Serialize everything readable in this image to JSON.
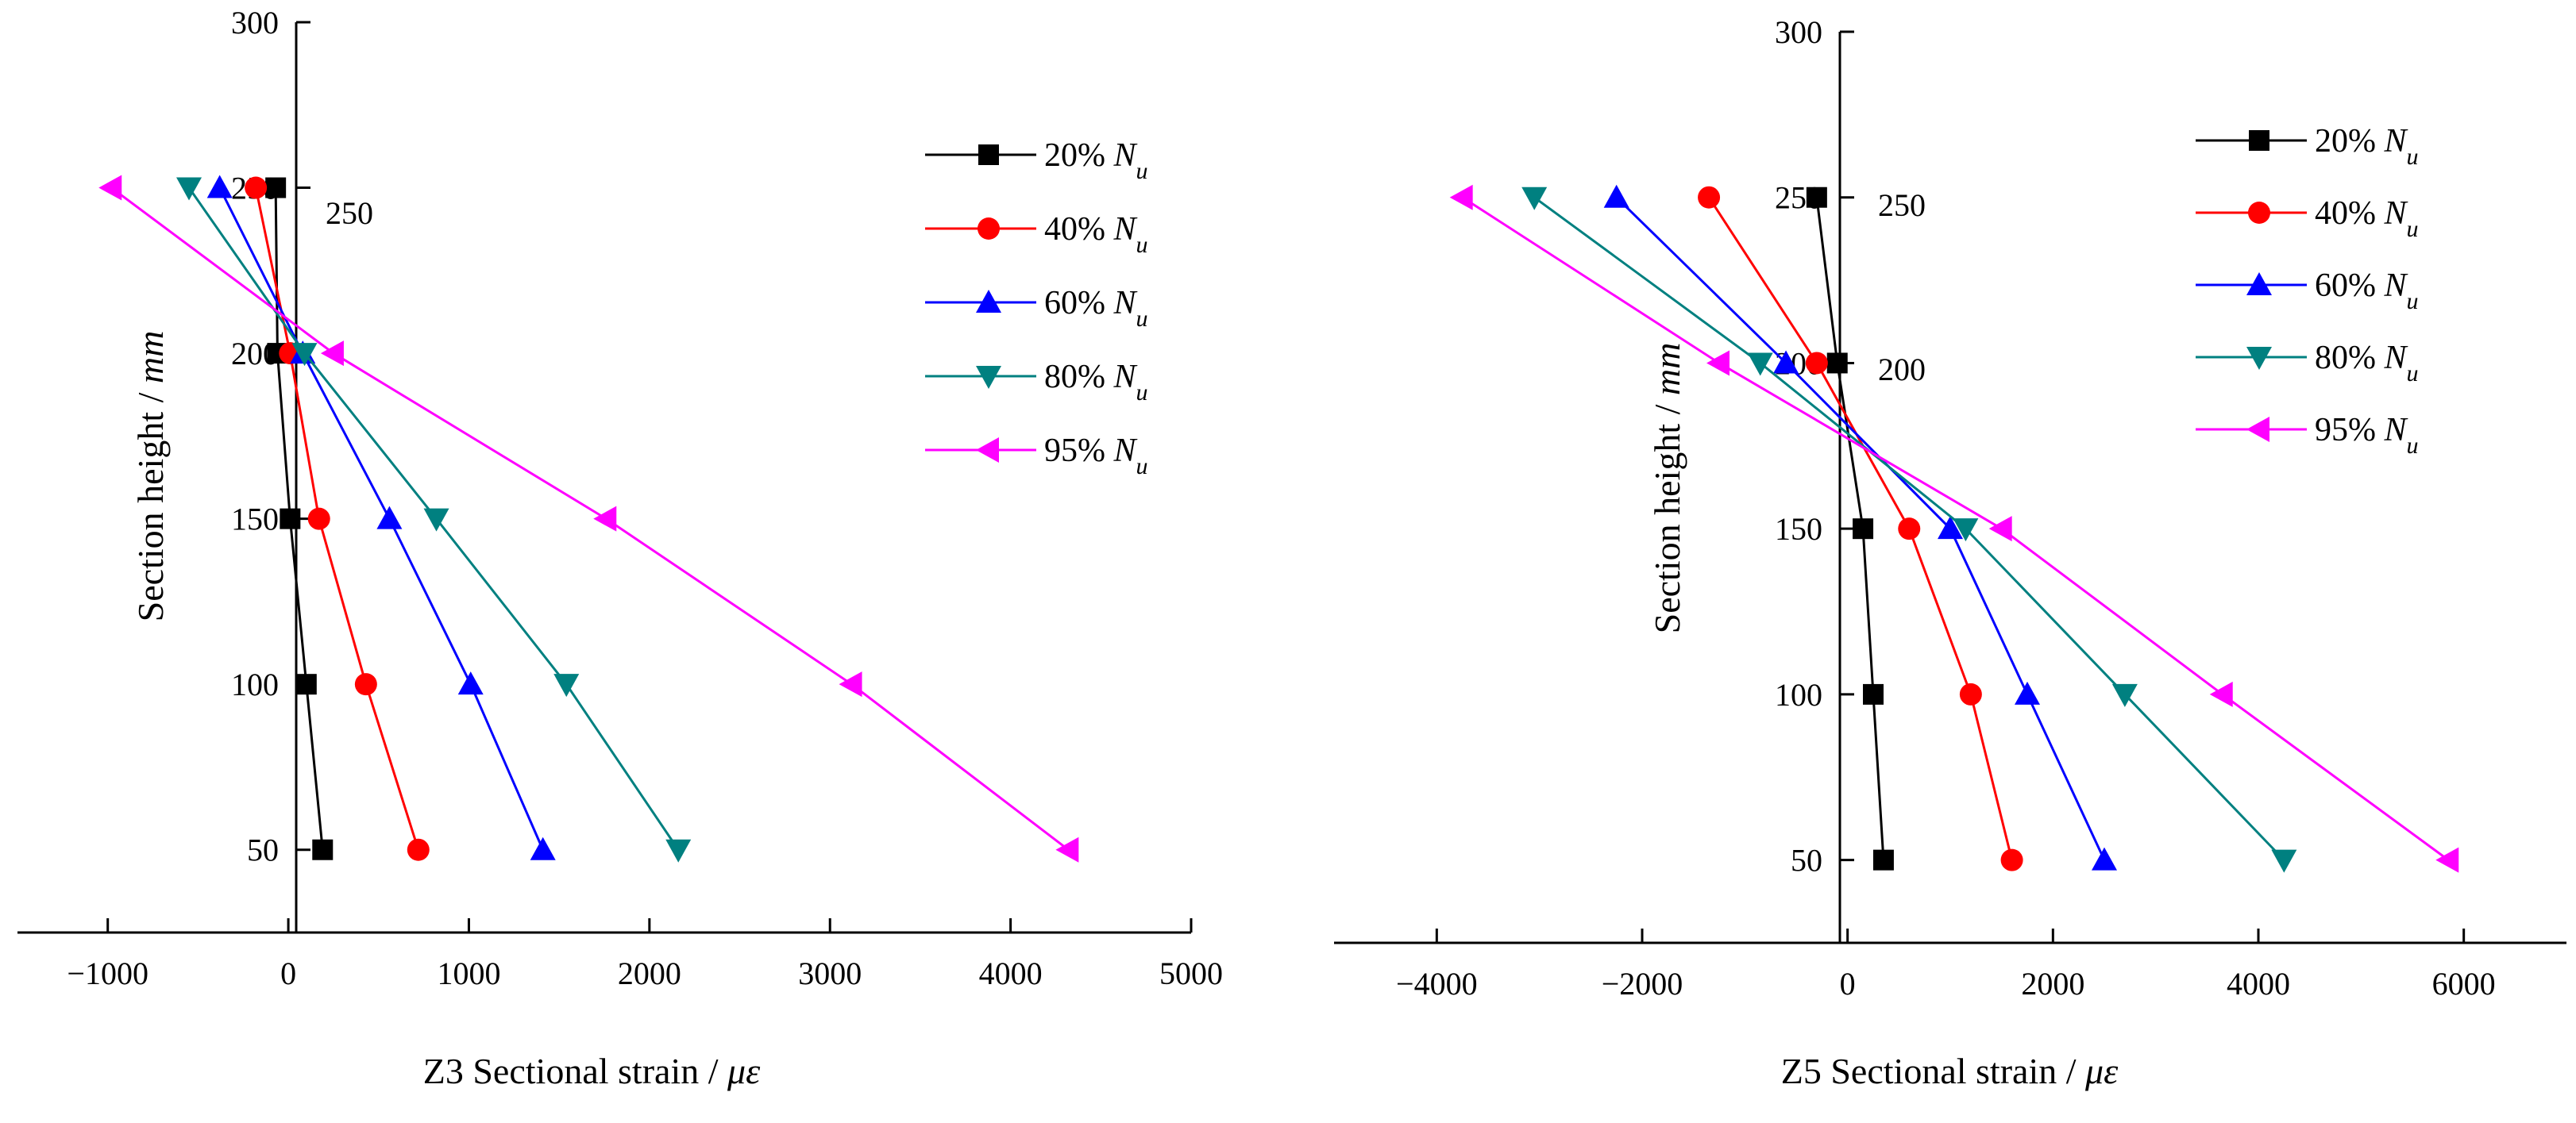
{
  "chart_data": [
    {
      "type": "line",
      "title": "",
      "xlabel": "Z3 Sectional strain / με",
      "ylabel": "Section height / mm",
      "xlim": [
        -1500,
        5000
      ],
      "ylim": [
        25,
        300
      ],
      "xticks": [
        -1000,
        0,
        1000,
        2000,
        3000,
        4000,
        5000
      ],
      "xtick_labels": [
        "−1000",
        "0",
        "1000",
        "2000",
        "3000",
        "4000",
        "5000"
      ],
      "yticks": [
        50,
        100,
        150,
        200,
        250,
        300
      ],
      "ytick_labels": [
        "50",
        "100",
        "150",
        "200",
        "250",
        "300"
      ],
      "grid": false,
      "legend_position": "top-right",
      "annotations": [
        {
          "text": "250"
        }
      ],
      "series": [
        {
          "name": "20% N",
          "subscript": "u",
          "color": "#000000",
          "marker": "square",
          "x": [
            -70,
            -60,
            10,
            100,
            190
          ],
          "y": [
            250,
            200,
            150,
            100,
            50
          ]
        },
        {
          "name": "40% N",
          "subscript": "u",
          "color": "#ff0000",
          "marker": "circle",
          "x": [
            -180,
            10,
            170,
            430,
            720
          ],
          "y": [
            250,
            200,
            150,
            100,
            50
          ]
        },
        {
          "name": "60% N",
          "subscript": "u",
          "color": "#0000ff",
          "marker": "triangle-up",
          "x": [
            -380,
            80,
            560,
            1010,
            1410
          ],
          "y": [
            250,
            200,
            150,
            100,
            50
          ]
        },
        {
          "name": "80% N",
          "subscript": "u",
          "color": "#008080",
          "marker": "triangle-down",
          "x": [
            -550,
            90,
            820,
            1540,
            2160
          ],
          "y": [
            250,
            200,
            150,
            100,
            50
          ]
        },
        {
          "name": "95% N",
          "subscript": "u",
          "color": "#ff00ff",
          "marker": "triangle-left",
          "x": [
            -980,
            250,
            1760,
            3120,
            4320
          ],
          "y": [
            250,
            200,
            150,
            100,
            50
          ]
        }
      ]
    },
    {
      "type": "line",
      "title": "",
      "xlabel": "Z5 Sectional strain / με",
      "ylabel": "Section height / mm",
      "xlim": [
        -5000,
        7000
      ],
      "ylim": [
        25,
        300
      ],
      "xticks": [
        -4000,
        -2000,
        0,
        2000,
        4000,
        6000
      ],
      "xtick_labels": [
        "−4000",
        "−2000",
        "0",
        "2000",
        "4000",
        "6000"
      ],
      "yticks": [
        50,
        100,
        150,
        200,
        250,
        300
      ],
      "ytick_labels": [
        "50",
        "100",
        "150",
        "200",
        "250",
        "300"
      ],
      "grid": false,
      "legend_position": "top-right",
      "annotations": [
        {
          "text": "250"
        },
        {
          "text": "200"
        }
      ],
      "series": [
        {
          "name": "20% N",
          "subscript": "u",
          "color": "#000000",
          "marker": "square",
          "x": [
            -300,
            -100,
            150,
            250,
            350
          ],
          "y": [
            250,
            200,
            150,
            100,
            50
          ]
        },
        {
          "name": "40% N",
          "subscript": "u",
          "color": "#ff0000",
          "marker": "circle",
          "x": [
            -1350,
            -300,
            600,
            1200,
            1600
          ],
          "y": [
            250,
            200,
            150,
            100,
            50
          ]
        },
        {
          "name": "60% N",
          "subscript": "u",
          "color": "#0000ff",
          "marker": "triangle-up",
          "x": [
            -2250,
            -600,
            1000,
            1750,
            2500
          ],
          "y": [
            250,
            200,
            150,
            100,
            50
          ]
        },
        {
          "name": "80% N",
          "subscript": "u",
          "color": "#008080",
          "marker": "triangle-down",
          "x": [
            -3050,
            -850,
            1150,
            2700,
            4250
          ],
          "y": [
            250,
            200,
            150,
            100,
            50
          ]
        },
        {
          "name": "95% N",
          "subscript": "u",
          "color": "#ff00ff",
          "marker": "triangle-left",
          "x": [
            -3750,
            -1250,
            1500,
            3650,
            5850
          ],
          "y": [
            250,
            200,
            150,
            100,
            50
          ]
        }
      ]
    }
  ]
}
